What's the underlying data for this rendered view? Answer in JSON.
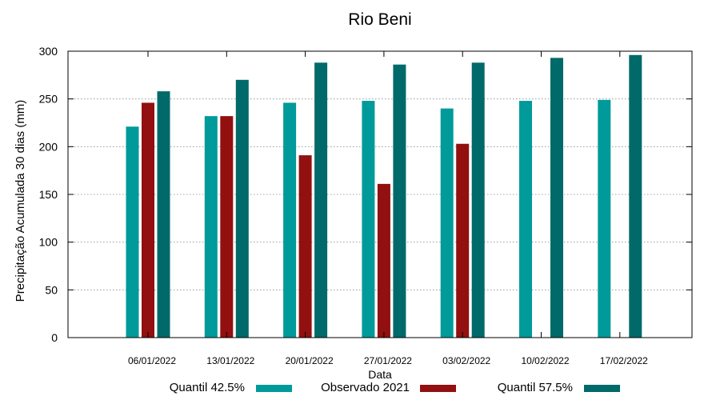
{
  "chart_data": {
    "type": "bar",
    "title": "Rio Beni",
    "xlabel": "Data",
    "ylabel": "Precipitação Acumulada 30 dias (mm)",
    "ylim": [
      0,
      300
    ],
    "yticks": [
      0,
      50,
      100,
      150,
      200,
      250,
      300
    ],
    "grid": true,
    "legend_position": "bottom",
    "categories": [
      "06/01/2022",
      "13/01/2022",
      "20/01/2022",
      "27/01/2022",
      "03/02/2022",
      "10/02/2022",
      "17/02/2022"
    ],
    "series": [
      {
        "name": "Quantil 42.5%",
        "color": "#009a9a",
        "values": [
          221,
          232,
          246,
          248,
          240,
          248,
          249
        ]
      },
      {
        "name": "Observado 2021",
        "color": "#921010",
        "values": [
          246,
          232,
          191,
          161,
          203,
          null,
          null
        ]
      },
      {
        "name": "Quantil 57.5%",
        "color": "#006969",
        "values": [
          258,
          270,
          288,
          286,
          288,
          293,
          296
        ]
      }
    ]
  }
}
